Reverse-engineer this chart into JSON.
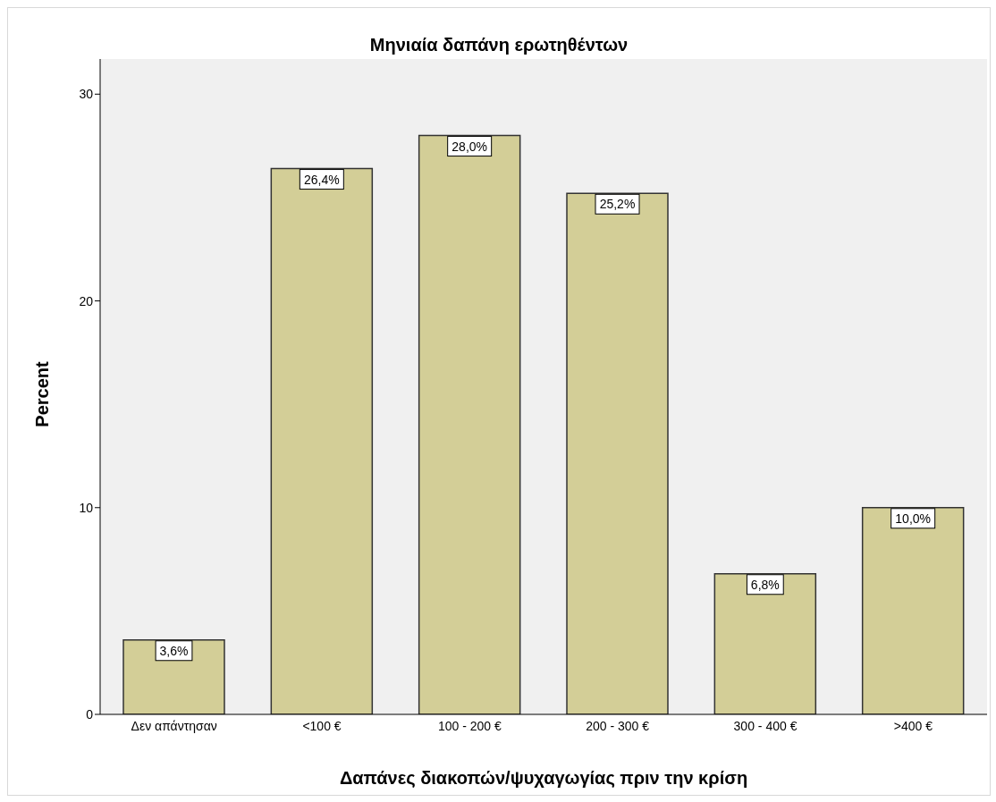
{
  "chart_data": {
    "type": "bar",
    "title": "Μηνιαία δαπάνη ερωτηθέντων",
    "xlabel": "Δαπάνες διακοπών/ψυχαγωγίας πριν την κρίση",
    "ylabel": "Percent",
    "categories": [
      "Δεν απάντησαν",
      "<100 €",
      "100 - 200 €",
      "200 - 300 €",
      "300 - 400 €",
      ">400 €"
    ],
    "values": [
      3.6,
      26.4,
      28.0,
      25.2,
      6.8,
      10.0
    ],
    "value_labels": [
      "3,6%",
      "26,4%",
      "28,0%",
      "25,2%",
      "6,8%",
      "10,0%"
    ],
    "color": "#d3ce97",
    "ylim": [
      0,
      31.7
    ],
    "yticks": [
      0,
      10,
      20,
      30
    ],
    "grid": false
  }
}
